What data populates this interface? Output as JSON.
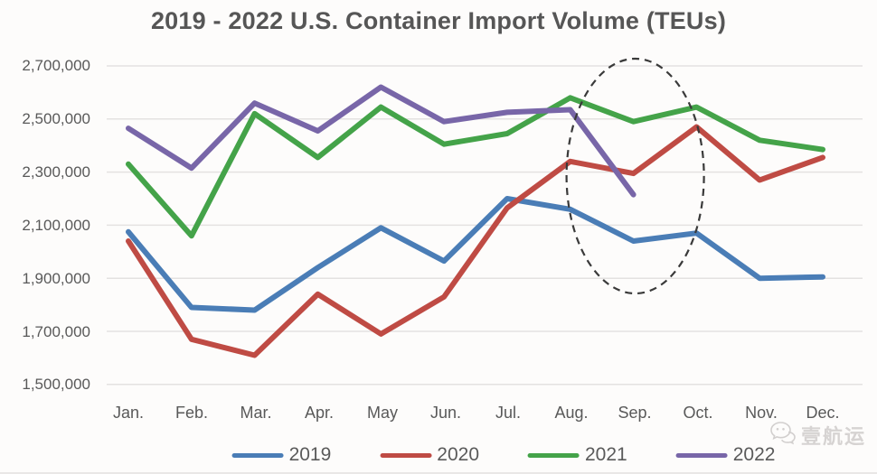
{
  "watermark": {
    "text": "壹航运",
    "icon": "chat-bubbles-icon",
    "color": "#d6d3d2"
  },
  "chart_data": {
    "type": "line",
    "title": "2019 - 2022 U.S. Container Import Volume (TEUs)",
    "xlabel": "",
    "ylabel": "",
    "categories": [
      "Jan.",
      "Feb.",
      "Mar.",
      "Apr.",
      "May",
      "Jun.",
      "Jul.",
      "Aug.",
      "Sep.",
      "Oct.",
      "Nov.",
      "Dec."
    ],
    "y_tick_labels": [
      "2,700,000",
      "2,500,000",
      "2,300,000",
      "2,100,000",
      "1,900,000",
      "1,700,000",
      "1,500,000"
    ],
    "ylim": [
      1500000,
      2700000
    ],
    "y_step": 200000,
    "grid": true,
    "legend_position": "bottom",
    "series": [
      {
        "name": "2019",
        "color": "#4a7db6",
        "values": [
          2075000,
          1790000,
          1780000,
          1940000,
          2090000,
          1965000,
          2200000,
          2160000,
          2040000,
          2070000,
          1900000,
          1905000
        ]
      },
      {
        "name": "2020",
        "color": "#bf4b44",
        "values": [
          2040000,
          1670000,
          1610000,
          1840000,
          1690000,
          1830000,
          2165000,
          2340000,
          2295000,
          2470000,
          2270000,
          2355000
        ]
      },
      {
        "name": "2021",
        "color": "#44a349",
        "values": [
          2330000,
          2060000,
          2520000,
          2355000,
          2545000,
          2405000,
          2445000,
          2580000,
          2490000,
          2545000,
          2420000,
          2385000
        ]
      },
      {
        "name": "2022",
        "color": "#7866a8",
        "values": [
          2465000,
          2315000,
          2560000,
          2455000,
          2620000,
          2490000,
          2525000,
          2535000,
          2215000,
          null,
          null,
          null
        ]
      }
    ],
    "annotation": {
      "shape": "ellipse",
      "style": "dashed",
      "color": "#3a3a3a",
      "months": [
        "Aug.",
        "Sep."
      ],
      "meaning": "highlight of Aug-Sep 2022 volume drop"
    }
  }
}
